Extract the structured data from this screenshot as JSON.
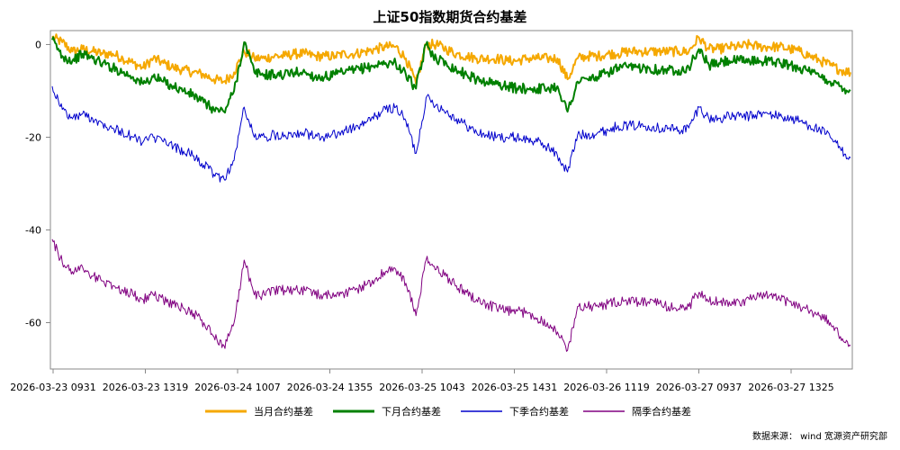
{
  "chart_data": {
    "type": "line",
    "title": "上证50指数期货合约基差",
    "xlabel": "",
    "ylabel": "",
    "ylim": [
      -70,
      3
    ],
    "yticks": [
      0,
      -20,
      -40,
      -60
    ],
    "x_tick_labels": [
      "2026-03-23 0931",
      "2026-03-23 1319",
      "2026-03-24 1007",
      "2026-03-24 1355",
      "2026-03-25 1043",
      "2026-03-25 1431",
      "2026-03-26 1119",
      "2026-03-27 0937",
      "2026-03-27 1325"
    ],
    "grid": false,
    "legend": "bottom",
    "source": "数据来源： wind 宽源资产研究部",
    "series": [
      {
        "name": "当月合约基差",
        "color": "#f5a800",
        "values": [
          1.5,
          0.5,
          -1.5,
          -1.0,
          -1.5,
          -2.0,
          -2.0,
          -3.0,
          -4.0,
          -5.0,
          -3.0,
          -4.0,
          -5.0,
          -5.5,
          -6.0,
          -6.5,
          -7.5,
          -8.0,
          -6.0,
          -1.5,
          -3.0,
          -3.0,
          -2.5,
          -2.5,
          -2.0,
          -2.0,
          -2.5,
          -2.5,
          -2.5,
          -2.0,
          -2.0,
          -1.5,
          -1.0,
          -0.5,
          -0.5,
          -3.0,
          -8.5,
          0.0,
          0.0,
          -1.0,
          -2.0,
          -2.5,
          -3.0,
          -3.0,
          -3.0,
          -3.5,
          -3.5,
          -3.0,
          -3.0,
          -3.0,
          -3.0,
          -7.5,
          -3.0,
          -2.5,
          -2.5,
          -2.0,
          -2.0,
          -1.5,
          -1.5,
          -1.5,
          -1.5,
          -1.5,
          -1.5,
          -1.5,
          1.5,
          -1.0,
          -1.0,
          -0.5,
          -0.5,
          0.0,
          -0.5,
          -0.5,
          -0.5,
          -1.0,
          -1.5,
          -2.5,
          -3.5,
          -4.5,
          -5.5,
          -6.0
        ]
      },
      {
        "name": "下月合约基差",
        "color": "#008000",
        "values": [
          1.0,
          -2.5,
          -3.5,
          -2.0,
          -3.0,
          -4.0,
          -5.0,
          -6.0,
          -7.0,
          -8.5,
          -7.0,
          -8.0,
          -9.0,
          -10.0,
          -11.0,
          -12.5,
          -14.0,
          -14.5,
          -10.0,
          0.5,
          -6.0,
          -6.5,
          -6.5,
          -6.5,
          -6.0,
          -6.0,
          -7.0,
          -7.0,
          -6.5,
          -6.0,
          -5.5,
          -5.0,
          -4.5,
          -4.0,
          -4.0,
          -6.5,
          -9.5,
          0.0,
          -3.0,
          -4.0,
          -5.5,
          -6.5,
          -7.5,
          -8.0,
          -8.5,
          -9.0,
          -9.5,
          -9.5,
          -9.5,
          -9.5,
          -9.0,
          -14.5,
          -8.0,
          -7.5,
          -7.0,
          -6.0,
          -5.0,
          -5.0,
          -5.0,
          -5.0,
          -5.5,
          -5.5,
          -5.5,
          -5.0,
          -1.0,
          -4.5,
          -4.0,
          -3.5,
          -3.5,
          -3.5,
          -3.5,
          -3.5,
          -4.0,
          -4.5,
          -5.0,
          -6.0,
          -7.0,
          -8.0,
          -9.0,
          -10.0
        ]
      },
      {
        "name": "下季合约基差",
        "color": "#0000cc",
        "values": [
          -9.0,
          -14.0,
          -16.0,
          -15.0,
          -16.0,
          -17.0,
          -18.0,
          -19.0,
          -20.0,
          -21.0,
          -20.0,
          -21.0,
          -22.0,
          -23.0,
          -24.0,
          -26.0,
          -28.0,
          -29.0,
          -25.0,
          -13.5,
          -20.0,
          -20.0,
          -19.5,
          -19.5,
          -19.0,
          -19.0,
          -20.0,
          -20.0,
          -19.5,
          -18.5,
          -18.0,
          -17.0,
          -15.5,
          -14.0,
          -13.5,
          -16.5,
          -23.5,
          -11.5,
          -13.0,
          -14.5,
          -16.0,
          -17.5,
          -19.0,
          -19.5,
          -20.0,
          -20.0,
          -20.0,
          -20.5,
          -21.0,
          -22.0,
          -24.0,
          -27.5,
          -19.5,
          -19.5,
          -19.0,
          -18.5,
          -17.5,
          -17.5,
          -17.5,
          -17.5,
          -18.0,
          -18.0,
          -18.5,
          -18.0,
          -13.5,
          -16.0,
          -16.0,
          -15.5,
          -15.5,
          -15.5,
          -15.0,
          -15.0,
          -15.5,
          -16.0,
          -16.5,
          -17.5,
          -18.5,
          -20.0,
          -22.5,
          -24.5
        ]
      },
      {
        "name": "隔季合约基差",
        "color": "#800080",
        "values": [
          -42.0,
          -47.0,
          -49.0,
          -48.0,
          -50.0,
          -51.0,
          -52.0,
          -53.0,
          -54.0,
          -55.0,
          -54.0,
          -55.0,
          -56.0,
          -57.0,
          -58.0,
          -60.0,
          -63.0,
          -65.0,
          -60.0,
          -46.5,
          -54.0,
          -54.0,
          -53.0,
          -53.0,
          -53.0,
          -53.0,
          -54.0,
          -54.0,
          -54.0,
          -53.5,
          -53.0,
          -52.0,
          -50.5,
          -49.0,
          -48.5,
          -51.5,
          -58.5,
          -46.5,
          -48.5,
          -50.0,
          -52.0,
          -53.5,
          -55.0,
          -56.0,
          -57.0,
          -57.5,
          -57.5,
          -58.0,
          -59.0,
          -60.0,
          -62.0,
          -66.0,
          -56.5,
          -56.5,
          -56.5,
          -56.0,
          -55.5,
          -55.5,
          -55.5,
          -55.5,
          -56.0,
          -56.5,
          -57.0,
          -56.5,
          -53.5,
          -55.5,
          -55.5,
          -55.5,
          -55.5,
          -55.0,
          -54.5,
          -54.0,
          -55.0,
          -55.5,
          -56.5,
          -57.5,
          -58.5,
          -60.0,
          -63.0,
          -65.0
        ]
      }
    ]
  }
}
